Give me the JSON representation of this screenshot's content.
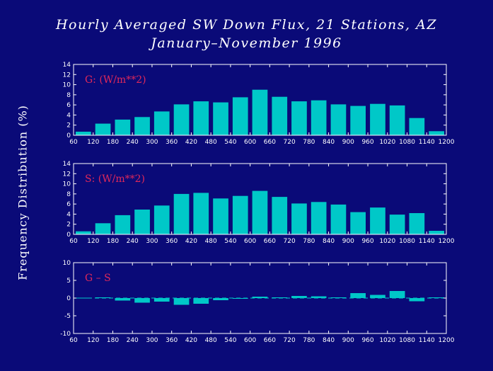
{
  "title_line1": "Hourly Averaged SW Down Flux, 21 Stations, AZ",
  "title_line2": "January–November 1996",
  "ylabel": "Frequency Distribution (%)",
  "colors": {
    "background": "#0a0a78",
    "bar": "#00c8c8",
    "axis": "#ffffff",
    "label": "#e0285a"
  },
  "chart_data": [
    {
      "type": "bar",
      "label": "G: (W/m**2)",
      "ylim": [
        0,
        14
      ],
      "yticks": [
        0,
        2,
        4,
        6,
        8,
        10,
        12,
        14
      ],
      "xlim": [
        60,
        1200
      ],
      "xticks": [
        60,
        120,
        180,
        240,
        300,
        360,
        420,
        480,
        540,
        600,
        660,
        720,
        780,
        840,
        900,
        960,
        1020,
        1080,
        1140,
        1200
      ],
      "bin_width": 60,
      "bins": [
        60,
        120,
        180,
        240,
        300,
        360,
        420,
        480,
        540,
        600,
        660,
        720,
        780,
        840,
        900,
        960,
        1020,
        1080,
        1140
      ],
      "values": [
        0.7,
        2.3,
        3.1,
        3.6,
        4.7,
        6.1,
        6.7,
        6.5,
        7.5,
        9.0,
        7.6,
        6.7,
        6.9,
        6.1,
        5.8,
        6.2,
        5.9,
        3.4,
        0.8
      ]
    },
    {
      "type": "bar",
      "label": "S: (W/m**2)",
      "ylim": [
        0,
        14
      ],
      "yticks": [
        0,
        2,
        4,
        6,
        8,
        10,
        12,
        14
      ],
      "xlim": [
        60,
        1200
      ],
      "xticks": [
        60,
        120,
        180,
        240,
        300,
        360,
        420,
        480,
        540,
        600,
        660,
        720,
        780,
        840,
        900,
        960,
        1020,
        1080,
        1140,
        1200
      ],
      "bin_width": 60,
      "bins": [
        60,
        120,
        180,
        240,
        300,
        360,
        420,
        480,
        540,
        600,
        660,
        720,
        780,
        840,
        900,
        960,
        1020,
        1080,
        1140
      ],
      "values": [
        0.6,
        2.2,
        3.8,
        4.9,
        5.7,
        8.0,
        8.2,
        7.1,
        7.6,
        8.6,
        7.4,
        6.1,
        6.4,
        5.9,
        4.4,
        5.3,
        3.9,
        4.2,
        0.7
      ]
    },
    {
      "type": "bar",
      "label": "G – S",
      "ylim": [
        -10,
        10
      ],
      "yticks": [
        -10,
        -5,
        0,
        5,
        10
      ],
      "xlim": [
        60,
        1200
      ],
      "xticks": [
        60,
        120,
        180,
        240,
        300,
        360,
        420,
        480,
        540,
        600,
        660,
        720,
        780,
        840,
        900,
        960,
        1020,
        1080,
        1140,
        1200
      ],
      "bin_width": 60,
      "bins": [
        60,
        120,
        180,
        240,
        300,
        360,
        420,
        480,
        540,
        600,
        660,
        720,
        780,
        840,
        900,
        960,
        1020,
        1080,
        1140
      ],
      "values": [
        0.1,
        0.2,
        -0.7,
        -1.3,
        -1.0,
        -1.9,
        -1.6,
        -0.6,
        -0.1,
        0.4,
        0.2,
        0.6,
        0.5,
        0.2,
        1.4,
        0.9,
        2.0,
        -0.9,
        0.2
      ]
    }
  ]
}
